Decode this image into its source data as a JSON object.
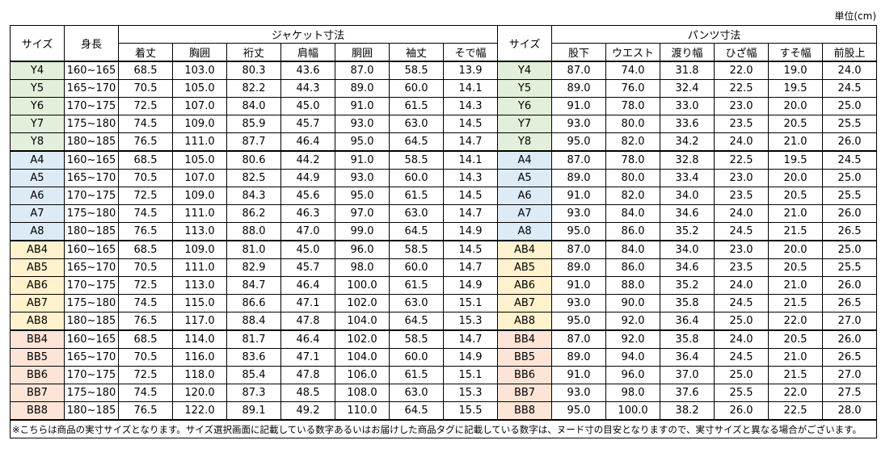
{
  "unit": "単位(cm)",
  "headers": {
    "size": "サイズ",
    "height": "身長",
    "jacket_title": "ジャケット寸法",
    "jacket_cols": [
      "着丈",
      "胸囲",
      "裄丈",
      "肩幅",
      "胴囲",
      "袖丈",
      "そで幅"
    ],
    "size2": "サイズ",
    "pants_title": "パンツ寸法",
    "pants_cols": [
      "股下",
      "ウエスト",
      "渡り幅",
      "ひざ幅",
      "すそ幅",
      "前股上"
    ]
  },
  "groups": [
    {
      "color": "#e2efda",
      "rows": [
        {
          "size": "Y4",
          "height": "160~165",
          "jacket": [
            "68.5",
            "103.0",
            "80.3",
            "43.6",
            "87.0",
            "58.5",
            "13.9"
          ],
          "pants": [
            "87.0",
            "74.0",
            "31.8",
            "22.0",
            "19.0",
            "24.0"
          ]
        },
        {
          "size": "Y5",
          "height": "165~170",
          "jacket": [
            "70.5",
            "105.0",
            "82.2",
            "44.3",
            "89.0",
            "60.0",
            "14.1"
          ],
          "pants": [
            "89.0",
            "76.0",
            "32.4",
            "22.5",
            "19.5",
            "24.5"
          ]
        },
        {
          "size": "Y6",
          "height": "170~175",
          "jacket": [
            "72.5",
            "107.0",
            "84.0",
            "45.0",
            "91.0",
            "61.5",
            "14.3"
          ],
          "pants": [
            "91.0",
            "78.0",
            "33.0",
            "23.0",
            "20.0",
            "25.0"
          ]
        },
        {
          "size": "Y7",
          "height": "175~180",
          "jacket": [
            "74.5",
            "109.0",
            "85.9",
            "45.7",
            "93.0",
            "63.0",
            "14.5"
          ],
          "pants": [
            "93.0",
            "80.0",
            "33.6",
            "23.5",
            "20.5",
            "25.5"
          ]
        },
        {
          "size": "Y8",
          "height": "180~185",
          "jacket": [
            "76.5",
            "111.0",
            "87.7",
            "46.4",
            "95.0",
            "64.5",
            "14.7"
          ],
          "pants": [
            "95.0",
            "82.0",
            "34.2",
            "24.0",
            "21.0",
            "26.0"
          ]
        }
      ]
    },
    {
      "color": "#ddebf7",
      "rows": [
        {
          "size": "A4",
          "height": "160~165",
          "jacket": [
            "68.5",
            "105.0",
            "80.6",
            "44.2",
            "91.0",
            "58.5",
            "14.1"
          ],
          "pants": [
            "87.0",
            "78.0",
            "32.8",
            "22.5",
            "19.5",
            "24.5"
          ]
        },
        {
          "size": "A5",
          "height": "165~170",
          "jacket": [
            "70.5",
            "107.0",
            "82.5",
            "44.9",
            "93.0",
            "60.0",
            "14.3"
          ],
          "pants": [
            "89.0",
            "80.0",
            "33.4",
            "23.0",
            "20.0",
            "25.0"
          ]
        },
        {
          "size": "A6",
          "height": "170~175",
          "jacket": [
            "72.5",
            "109.0",
            "84.3",
            "45.6",
            "95.0",
            "61.5",
            "14.5"
          ],
          "pants": [
            "91.0",
            "82.0",
            "34.0",
            "23.5",
            "20.5",
            "25.5"
          ]
        },
        {
          "size": "A7",
          "height": "175~180",
          "jacket": [
            "74.5",
            "111.0",
            "86.2",
            "46.3",
            "97.0",
            "63.0",
            "14.7"
          ],
          "pants": [
            "93.0",
            "84.0",
            "34.6",
            "24.0",
            "21.0",
            "26.0"
          ]
        },
        {
          "size": "A8",
          "height": "180~185",
          "jacket": [
            "76.5",
            "113.0",
            "88.0",
            "47.0",
            "99.0",
            "64.5",
            "14.9"
          ],
          "pants": [
            "95.0",
            "86.0",
            "35.2",
            "24.5",
            "21.5",
            "26.5"
          ]
        }
      ]
    },
    {
      "color": "#fff2cc",
      "rows": [
        {
          "size": "AB4",
          "height": "160~165",
          "jacket": [
            "68.5",
            "109.0",
            "81.0",
            "45.0",
            "96.0",
            "58.5",
            "14.5"
          ],
          "pants": [
            "87.0",
            "84.0",
            "34.0",
            "23.0",
            "20.0",
            "25.0"
          ]
        },
        {
          "size": "AB5",
          "height": "165~170",
          "jacket": [
            "70.5",
            "111.0",
            "82.9",
            "45.7",
            "98.0",
            "60.0",
            "14.7"
          ],
          "pants": [
            "89.0",
            "86.0",
            "34.6",
            "23.5",
            "20.5",
            "25.5"
          ]
        },
        {
          "size": "AB6",
          "height": "170~175",
          "jacket": [
            "72.5",
            "113.0",
            "84.7",
            "46.4",
            "100.0",
            "61.5",
            "14.9"
          ],
          "pants": [
            "91.0",
            "88.0",
            "35.2",
            "24.0",
            "21.0",
            "26.0"
          ]
        },
        {
          "size": "AB7",
          "height": "175~180",
          "jacket": [
            "74.5",
            "115.0",
            "86.6",
            "47.1",
            "102.0",
            "63.0",
            "15.1"
          ],
          "pants": [
            "93.0",
            "90.0",
            "35.8",
            "24.5",
            "21.5",
            "26.5"
          ]
        },
        {
          "size": "AB8",
          "height": "180~185",
          "jacket": [
            "76.5",
            "117.0",
            "88.4",
            "47.8",
            "104.0",
            "64.5",
            "15.3"
          ],
          "pants": [
            "95.0",
            "92.0",
            "36.4",
            "25.0",
            "22.0",
            "27.0"
          ]
        }
      ]
    },
    {
      "color": "#fce4d6",
      "rows": [
        {
          "size": "BB4",
          "height": "160~165",
          "jacket": [
            "68.5",
            "114.0",
            "81.7",
            "46.4",
            "102.0",
            "58.5",
            "14.7"
          ],
          "pants": [
            "87.0",
            "92.0",
            "35.8",
            "24.0",
            "20.5",
            "26.0"
          ]
        },
        {
          "size": "BB5",
          "height": "165~170",
          "jacket": [
            "70.5",
            "116.0",
            "83.6",
            "47.1",
            "104.0",
            "60.0",
            "14.9"
          ],
          "pants": [
            "89.0",
            "94.0",
            "36.4",
            "24.5",
            "21.0",
            "26.5"
          ]
        },
        {
          "size": "BB6",
          "height": "170~175",
          "jacket": [
            "72.5",
            "118.0",
            "85.4",
            "47.8",
            "106.0",
            "61.5",
            "15.1"
          ],
          "pants": [
            "91.0",
            "96.0",
            "37.0",
            "25.0",
            "21.5",
            "27.0"
          ]
        },
        {
          "size": "BB7",
          "height": "175~180",
          "jacket": [
            "74.5",
            "120.0",
            "87.3",
            "48.5",
            "108.0",
            "63.0",
            "15.3"
          ],
          "pants": [
            "93.0",
            "98.0",
            "37.6",
            "25.5",
            "22.0",
            "27.5"
          ]
        },
        {
          "size": "BB8",
          "height": "180~185",
          "jacket": [
            "76.5",
            "122.0",
            "89.1",
            "49.2",
            "110.0",
            "64.5",
            "15.5"
          ],
          "pants": [
            "95.0",
            "100.0",
            "38.2",
            "26.0",
            "22.5",
            "28.0"
          ]
        }
      ]
    }
  ],
  "note": "※こちらは商品の実寸サイズとなります。サイズ選択画面に記載している数字あるいはお届けした商品タグに記載している数字は、ヌード寸の目安となりますので、実寸サイズと異なる場合がございます。"
}
